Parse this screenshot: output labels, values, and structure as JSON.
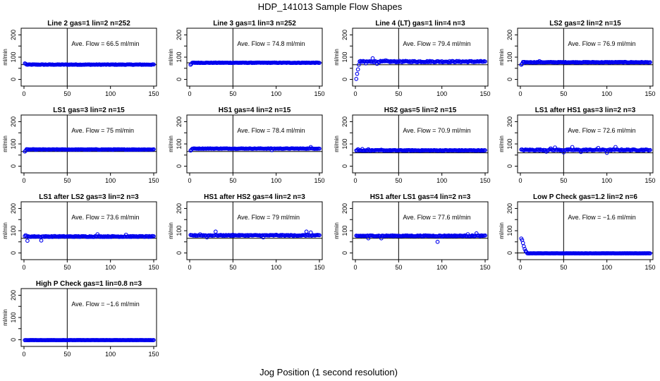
{
  "chart_data": {
    "type": "scatter",
    "title": "HDP_141013  Sample Flow Shapes",
    "xlabel": "Jog Position (1 second resolution)",
    "ylabel": "ml/min",
    "xlim": [
      0,
      150
    ],
    "ylim": [
      0,
      200
    ],
    "xticks": [
      0,
      50,
      100,
      150
    ],
    "yticks": [
      0,
      100,
      200
    ],
    "yticks_minor": [
      50,
      150
    ],
    "vline_x": 50,
    "annotation_prefix": "Ave. Flow = ",
    "annotation_unit": "ml/min",
    "point_color": "#0000ee",
    "panels": [
      {
        "title": "Line 2 gas=1 lin=2 n=252",
        "ave_flow": "66.5",
        "hline": 66.5,
        "base": 66.5,
        "noise": 1.2,
        "spikes": [
          [
            1,
            72
          ],
          [
            2,
            70
          ]
        ],
        "start_lo": null
      },
      {
        "title": "Line 3 gas=1 lin=3 n=252",
        "ave_flow": "74.8",
        "hline": 74.8,
        "base": 74.8,
        "noise": 1.0,
        "spikes": [
          [
            1,
            66
          ],
          [
            2,
            70
          ]
        ],
        "start_lo": null
      },
      {
        "title": "Line 4 (LT) gas=1 lin=4 n=3",
        "ave_flow": "79.4",
        "hline": 66,
        "base": 80,
        "noise": 3,
        "spikes": [
          [
            1,
            2
          ],
          [
            2,
            25
          ],
          [
            3,
            45
          ],
          [
            4,
            66
          ],
          [
            12,
            72
          ],
          [
            20,
            95
          ],
          [
            25,
            70
          ],
          [
            35,
            86
          ]
        ],
        "start_lo": null
      },
      {
        "title": "LS2 gas=2 lin=2 n=15",
        "ave_flow": "76.9",
        "hline": 66,
        "base": 77,
        "noise": 1.5,
        "spikes": [
          [
            1,
            66
          ],
          [
            2,
            70
          ],
          [
            22,
            82
          ]
        ],
        "start_lo": null
      },
      {
        "title": "LS1 gas=3 lin=2 n=15",
        "ave_flow": "75",
        "hline": 66,
        "base": 75,
        "noise": 1.2,
        "spikes": [
          [
            1,
            66
          ],
          [
            2,
            70
          ]
        ],
        "start_lo": null
      },
      {
        "title": "HS1 gas=4 lin=2 n=15",
        "ave_flow": "78.4",
        "hline": 66,
        "base": 79,
        "noise": 1.2,
        "spikes": [
          [
            1,
            70
          ],
          [
            2,
            74
          ],
          [
            95,
            72
          ],
          [
            140,
            86
          ]
        ],
        "start_lo": null
      },
      {
        "title": "HS2 gas=5 lin=2 n=15",
        "ave_flow": "70.9",
        "hline": 60,
        "base": 71,
        "noise": 1.5,
        "spikes": [
          [
            3,
            76
          ],
          [
            8,
            77
          ],
          [
            15,
            76
          ],
          [
            30,
            74
          ]
        ],
        "start_lo": null
      },
      {
        "title": "LS1 after HS1 gas=3 lin=2 n=3",
        "ave_flow": "72.6",
        "hline": 60,
        "base": 73,
        "noise": 2.5,
        "spikes": [
          [
            30,
            65
          ],
          [
            35,
            80
          ],
          [
            40,
            84
          ],
          [
            50,
            62
          ],
          [
            60,
            86
          ],
          [
            70,
            64
          ],
          [
            90,
            82
          ],
          [
            100,
            60
          ],
          [
            110,
            86
          ]
        ],
        "start_lo": null
      },
      {
        "title": "LS1 after LS2 gas=3 lin=2 n=3",
        "ave_flow": "73.6",
        "hline": 66,
        "base": 74,
        "noise": 2,
        "spikes": [
          [
            2,
            80
          ],
          [
            4,
            55
          ],
          [
            20,
            56
          ],
          [
            35,
            76
          ],
          [
            85,
            84
          ],
          [
            118,
            82
          ]
        ],
        "start_lo": null
      },
      {
        "title": "HS1 after HS2 gas=4 lin=2 n=3",
        "ave_flow": "79",
        "hline": 66,
        "base": 79,
        "noise": 2,
        "spikes": [
          [
            12,
            84
          ],
          [
            20,
            70
          ],
          [
            30,
            96
          ],
          [
            50,
            82
          ],
          [
            85,
            70
          ],
          [
            100,
            82
          ],
          [
            120,
            76
          ],
          [
            135,
            96
          ],
          [
            140,
            92
          ]
        ],
        "start_lo": null
      },
      {
        "title": "HS1 after LS1 gas=4 lin=2 n=3",
        "ave_flow": "77.6",
        "hline": 66,
        "base": 77,
        "noise": 2,
        "spikes": [
          [
            10,
            76
          ],
          [
            15,
            66
          ],
          [
            30,
            66
          ],
          [
            45,
            78
          ],
          [
            70,
            76
          ],
          [
            95,
            50
          ],
          [
            100,
            74
          ],
          [
            130,
            84
          ],
          [
            140,
            88
          ]
        ],
        "start_lo": null
      },
      {
        "title": "Low P Check gas=1.2 lin=2 n=6",
        "ave_flow": "−1.6",
        "hline": 0,
        "base": -1.6,
        "noise": 0.4,
        "spikes": [
          [
            1,
            65
          ],
          [
            2,
            58
          ],
          [
            3,
            45
          ],
          [
            4,
            30
          ],
          [
            5,
            18
          ],
          [
            6,
            9
          ],
          [
            7,
            4
          ]
        ],
        "start_lo": null
      },
      {
        "title": "High P Check gas=1 lin=0.8 n=3",
        "ave_flow": "−1.6",
        "hline": null,
        "base": -1.6,
        "noise": 0.3,
        "spikes": [],
        "start_lo": null
      }
    ]
  }
}
